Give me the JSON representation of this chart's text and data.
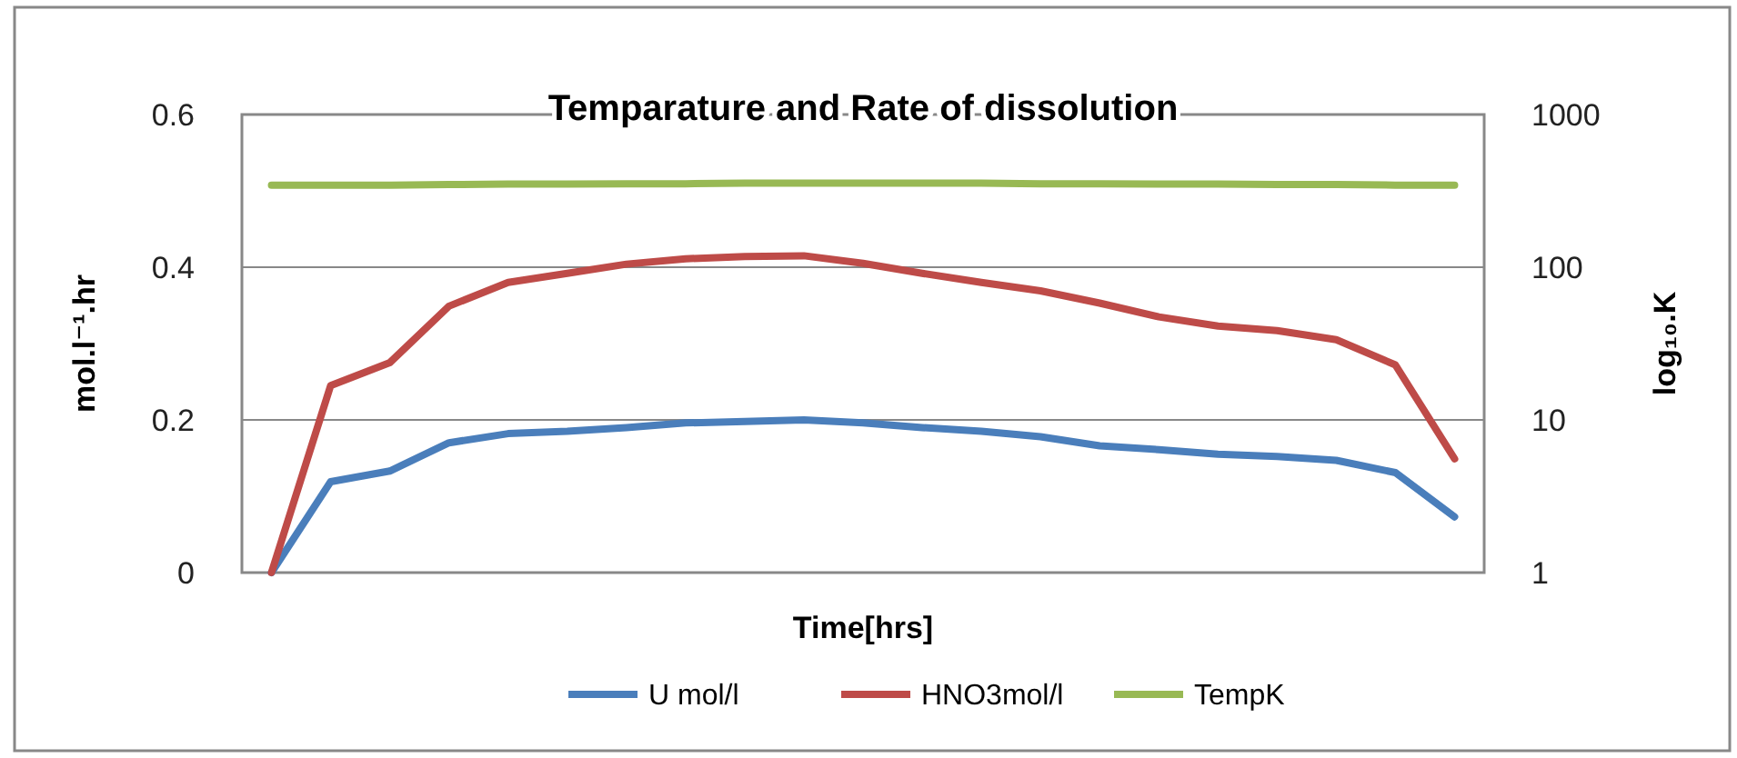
{
  "chart_data": {
    "type": "line",
    "title": "Temparature and Rate of dissolution",
    "xlabel": "Time[hrs]",
    "ylabel": "mol.l⁻¹.hr",
    "y2label": "log₁₀.K",
    "categories": [
      null,
      null,
      null,
      null,
      null,
      null,
      null,
      null,
      null,
      null,
      null,
      null,
      null,
      null,
      null,
      null,
      null,
      null,
      null,
      null,
      null
    ],
    "ylim": [
      0,
      0.6
    ],
    "yticks": [
      0,
      0.2,
      0.4,
      0.6
    ],
    "y2lim": [
      1,
      1000
    ],
    "y2ticks": [
      1,
      10,
      100,
      1000
    ],
    "log": "y2",
    "grid": "y",
    "legend": "bottom",
    "marker": "none",
    "line_style": "solid",
    "series": [
      {
        "name": "U mol/l",
        "color": "#4a7ebb",
        "values": [
          0,
          0.119,
          0.133,
          0.17,
          0.182,
          0.185,
          0.19,
          0.196,
          0.198,
          0.2,
          0.196,
          0.19,
          0.185,
          0.178,
          0.166,
          0.161,
          0.155,
          0.152,
          0.147,
          0.131,
          0.073
        ]
      },
      {
        "name": "HNO3mol/l",
        "color": "#be4b48",
        "values": [
          0,
          0.245,
          0.275,
          0.349,
          0.38,
          0.392,
          0.404,
          0.411,
          0.414,
          0.415,
          0.405,
          0.392,
          0.38,
          0.369,
          0.353,
          0.335,
          0.323,
          0.317,
          0.305,
          0.272,
          0.149
        ]
      },
      {
        "name": "TempK",
        "color": "#98b954",
        "axis": "y2",
        "values": [
          345,
          345,
          345,
          348,
          350,
          350,
          352,
          352,
          355,
          355,
          355,
          355,
          355,
          352,
          352,
          350,
          350,
          348,
          348,
          345,
          345
        ]
      }
    ]
  }
}
